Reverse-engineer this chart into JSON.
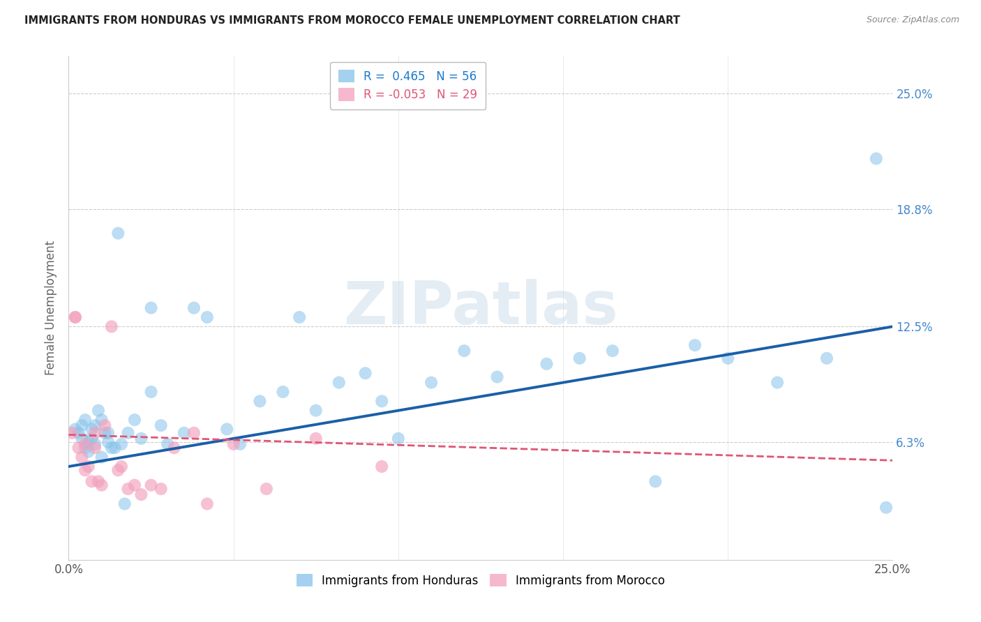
{
  "title": "IMMIGRANTS FROM HONDURAS VS IMMIGRANTS FROM MOROCCO FEMALE UNEMPLOYMENT CORRELATION CHART",
  "source": "Source: ZipAtlas.com",
  "ylabel": "Female Unemployment",
  "xlim": [
    0.0,
    0.25
  ],
  "ylim": [
    0.0,
    0.27
  ],
  "ytick_labels": [
    "6.3%",
    "12.5%",
    "18.8%",
    "25.0%"
  ],
  "ytick_values": [
    0.063,
    0.125,
    0.188,
    0.25
  ],
  "xtick_labels": [
    "0.0%",
    "25.0%"
  ],
  "legend_r1_label": "R =  0.465   N = 56",
  "legend_r2_label": "R = -0.053   N = 29",
  "legend_label1": "Immigrants from Honduras",
  "legend_label2": "Immigrants from Morocco",
  "honduras_color": "#85c2ea",
  "morocco_color": "#f2a0bb",
  "honduras_line_color": "#1a5fa8",
  "morocco_line_color": "#e05575",
  "r1_text_color": "#1a7acc",
  "r2_text_color": "#e05575",
  "ytick_color": "#4488cc",
  "background_color": "#ffffff",
  "grid_color": "#cccccc",
  "watermark": "ZIPatlas",
  "hond_intercept": 0.05,
  "hond_slope": 0.3,
  "moroc_intercept": 0.067,
  "moroc_slope": -0.055,
  "hond_x": [
    0.002,
    0.003,
    0.004,
    0.004,
    0.005,
    0.005,
    0.006,
    0.006,
    0.007,
    0.007,
    0.008,
    0.008,
    0.009,
    0.01,
    0.01,
    0.011,
    0.012,
    0.012,
    0.013,
    0.014,
    0.015,
    0.016,
    0.017,
    0.018,
    0.02,
    0.022,
    0.025,
    0.028,
    0.03,
    0.035,
    0.038,
    0.042,
    0.048,
    0.052,
    0.058,
    0.065,
    0.07,
    0.075,
    0.082,
    0.09,
    0.095,
    0.1,
    0.11,
    0.12,
    0.13,
    0.145,
    0.155,
    0.165,
    0.178,
    0.19,
    0.2,
    0.215,
    0.23,
    0.245,
    0.248,
    0.025
  ],
  "hond_y": [
    0.07,
    0.068,
    0.072,
    0.065,
    0.075,
    0.06,
    0.063,
    0.058,
    0.07,
    0.065,
    0.072,
    0.062,
    0.08,
    0.075,
    0.055,
    0.068,
    0.063,
    0.068,
    0.06,
    0.06,
    0.175,
    0.062,
    0.03,
    0.068,
    0.075,
    0.065,
    0.09,
    0.072,
    0.062,
    0.068,
    0.135,
    0.13,
    0.07,
    0.062,
    0.085,
    0.09,
    0.13,
    0.08,
    0.095,
    0.1,
    0.085,
    0.065,
    0.095,
    0.112,
    0.098,
    0.105,
    0.108,
    0.112,
    0.042,
    0.115,
    0.108,
    0.095,
    0.108,
    0.215,
    0.028,
    0.135
  ],
  "moroc_x": [
    0.001,
    0.002,
    0.002,
    0.003,
    0.004,
    0.005,
    0.005,
    0.006,
    0.007,
    0.008,
    0.008,
    0.009,
    0.01,
    0.011,
    0.013,
    0.015,
    0.016,
    0.018,
    0.02,
    0.022,
    0.025,
    0.028,
    0.032,
    0.038,
    0.042,
    0.05,
    0.06,
    0.075,
    0.095
  ],
  "moroc_y": [
    0.068,
    0.13,
    0.13,
    0.06,
    0.055,
    0.062,
    0.048,
    0.05,
    0.042,
    0.068,
    0.06,
    0.042,
    0.04,
    0.072,
    0.125,
    0.048,
    0.05,
    0.038,
    0.04,
    0.035,
    0.04,
    0.038,
    0.06,
    0.068,
    0.03,
    0.062,
    0.038,
    0.065,
    0.05
  ]
}
